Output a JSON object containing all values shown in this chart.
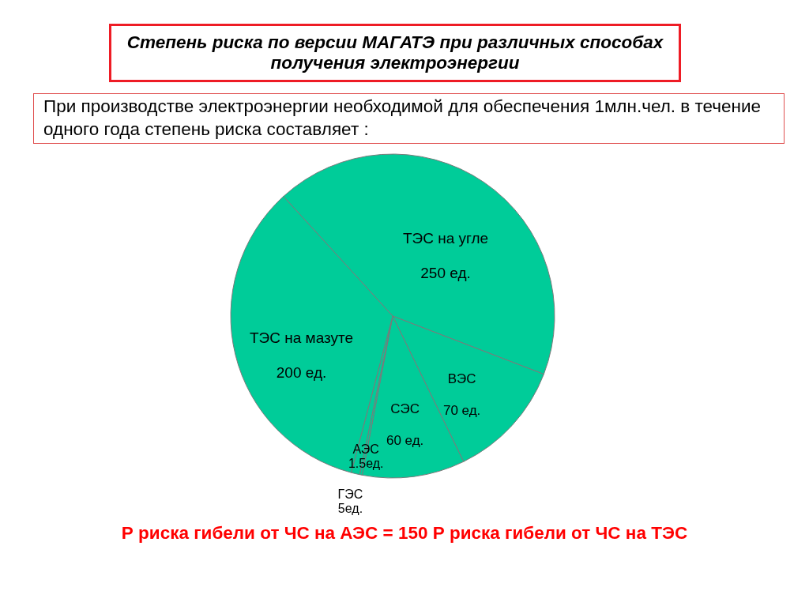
{
  "chart_data": {
    "type": "pie",
    "title": "Степень риска по версии МАГАТЭ при различных способах получения электроэнергии",
    "subtitle": "При производстве электроэнергии необходимой для обеспечения 1млн.чел. в течение одного года степень риска составляет :",
    "categories": [
      "ТЭС на угле",
      "ВЭС",
      "СЭС",
      "АЭС",
      "ГЭС",
      "ТЭС на мазуте"
    ],
    "values": [
      250,
      70,
      60,
      1.5,
      5,
      200
    ],
    "value_labels": [
      "250 ед.",
      "70 ед.",
      "60 ед.",
      "1.5ед.",
      "5ед.",
      "200 ед."
    ],
    "colors": [
      "#00cc99",
      "#00cc99",
      "#00cc99",
      "#00cc99",
      "#00cc99",
      "#00cc99"
    ],
    "annotations": [
      "Р риска гибели от ЧС на АЭС = 150 Р риска гибели от ЧС на ТЭС"
    ]
  }
}
